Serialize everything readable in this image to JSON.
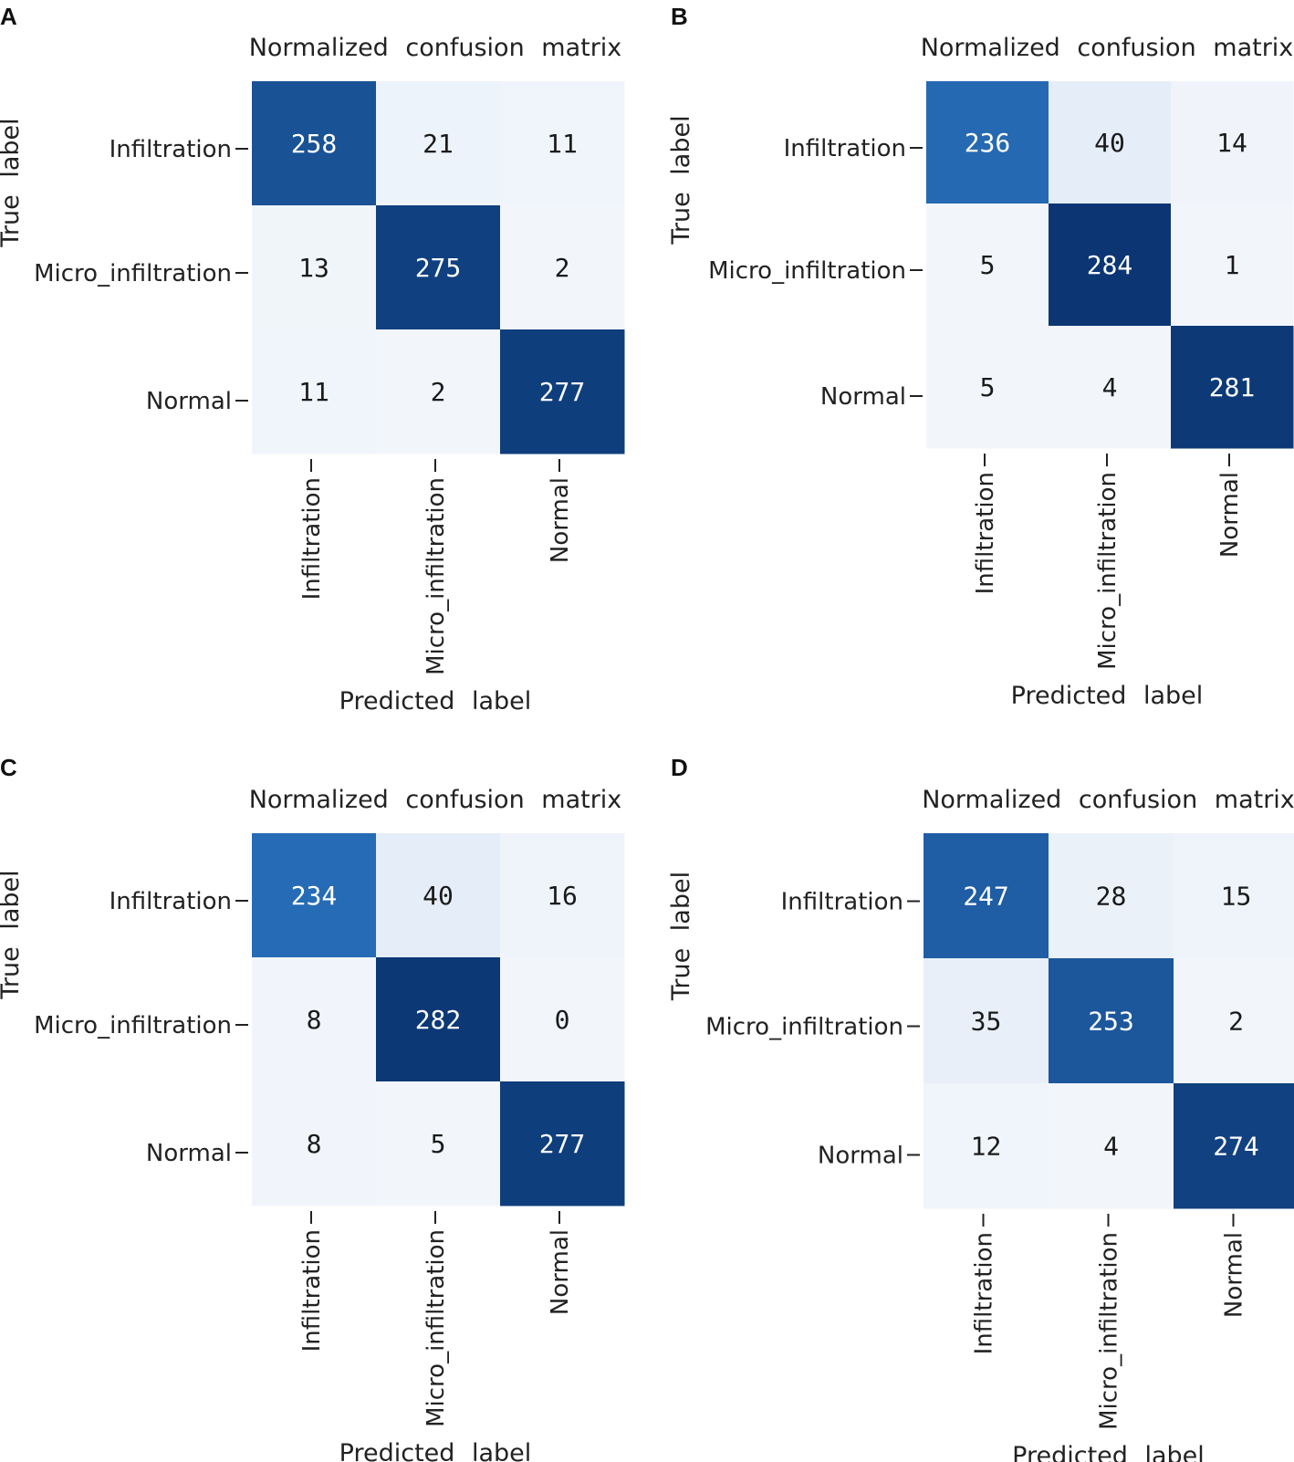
{
  "chart_data": [
    {
      "type": "heatmap",
      "panel": "A",
      "title": "Normalized confusion matrix",
      "xlabel": "Predicted label",
      "ylabel": "True label",
      "x_categories": [
        "Infiltration",
        "Micro_infiltration",
        "Normal"
      ],
      "y_categories": [
        "Infiltration",
        "Micro_infiltration",
        "Normal"
      ],
      "values": [
        [
          258,
          21,
          11
        ],
        [
          13,
          275,
          2
        ],
        [
          11,
          2,
          277
        ]
      ],
      "colormap": "Blues",
      "vmin": 0,
      "vmax": 290
    },
    {
      "type": "heatmap",
      "panel": "B",
      "title": "Normalized confusion matrix",
      "xlabel": "Predicted label",
      "ylabel": "True label",
      "x_categories": [
        "Infiltration",
        "Micro_infiltration",
        "Normal"
      ],
      "y_categories": [
        "Infiltration",
        "Micro_infiltration",
        "Normal"
      ],
      "values": [
        [
          236,
          40,
          14
        ],
        [
          5,
          284,
          1
        ],
        [
          5,
          4,
          281
        ]
      ],
      "colormap": "Blues",
      "vmin": 0,
      "vmax": 290
    },
    {
      "type": "heatmap",
      "panel": "C",
      "title": "Normalized confusion matrix",
      "xlabel": "Predicted label",
      "ylabel": "True label",
      "x_categories": [
        "Infiltration",
        "Micro_infiltration",
        "Normal"
      ],
      "y_categories": [
        "Infiltration",
        "Micro_infiltration",
        "Normal"
      ],
      "values": [
        [
          234,
          40,
          16
        ],
        [
          8,
          282,
          0
        ],
        [
          8,
          5,
          277
        ]
      ],
      "colormap": "Blues",
      "vmin": 0,
      "vmax": 290
    },
    {
      "type": "heatmap",
      "panel": "D",
      "title": "Normalized confusion matrix",
      "xlabel": "Predicted label",
      "ylabel": "True label",
      "x_categories": [
        "Infiltration",
        "Micro_infiltration",
        "Normal"
      ],
      "y_categories": [
        "Infiltration",
        "Micro_infiltration",
        "Normal"
      ],
      "values": [
        [
          247,
          28,
          15
        ],
        [
          35,
          253,
          2
        ],
        [
          12,
          4,
          274
        ]
      ],
      "colormap": "Blues",
      "vmin": 0,
      "vmax": 290
    }
  ],
  "colors": {
    "low": "#f2f6fb",
    "mid": "#2f7ccb",
    "high": "#08306b",
    "text_dark": "#1a1a1a",
    "text_light": "#ffffff"
  }
}
